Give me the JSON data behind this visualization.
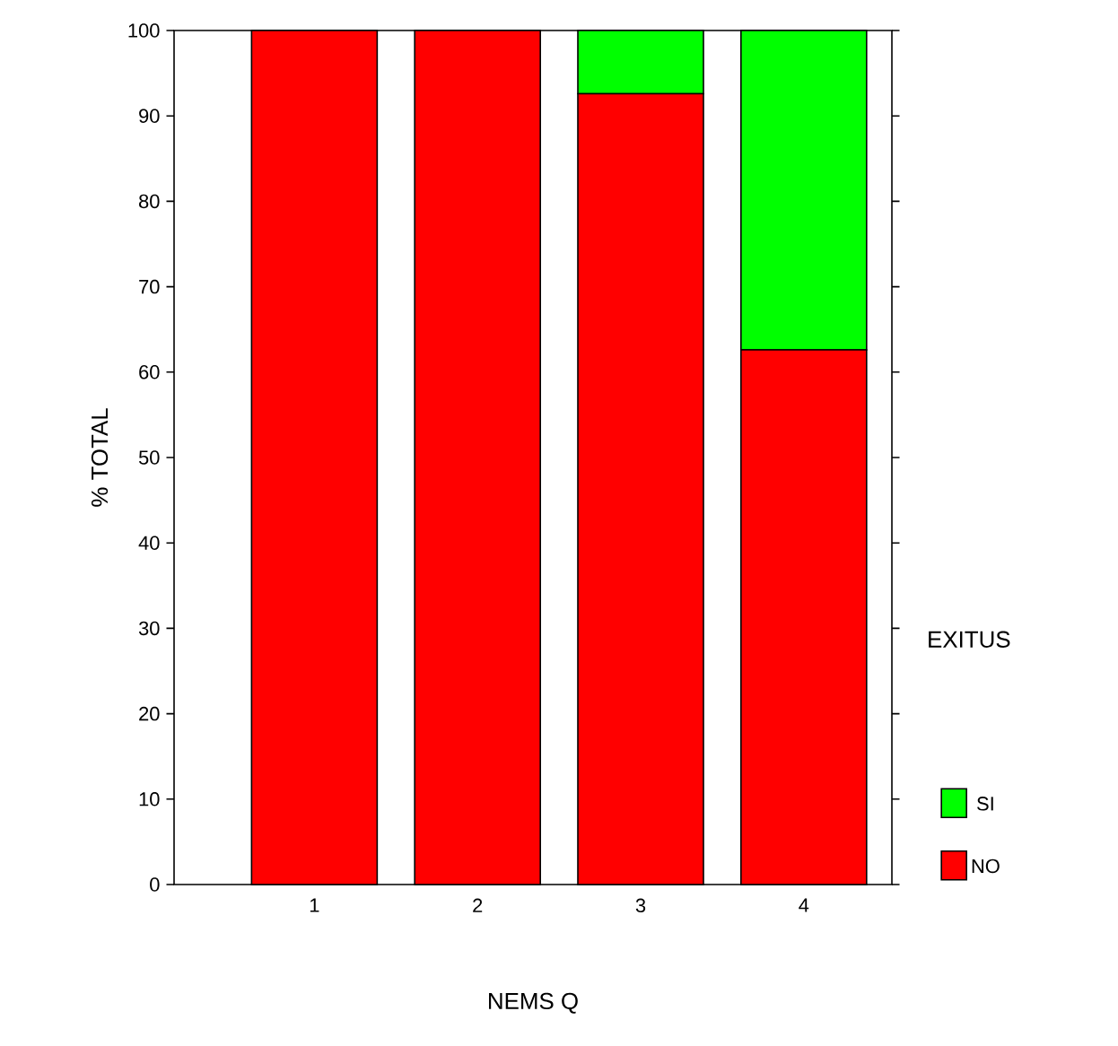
{
  "chart_data": {
    "type": "bar",
    "stacked": true,
    "xlabel": "NEMS  Q",
    "ylabel": "% TOTAL",
    "legend_title": "EXITUS",
    "legend": "right",
    "categories": [
      "1",
      "2",
      "3",
      "4"
    ],
    "series": [
      {
        "name": "NO",
        "color": "#ff0000",
        "values": [
          100,
          100,
          92.6,
          62.6
        ]
      },
      {
        "name": "SI",
        "color": "#00ff00",
        "values": [
          0,
          0,
          7.4,
          37.4
        ]
      }
    ],
    "ylim": [
      0,
      100
    ],
    "yticks": [
      0,
      10,
      20,
      30,
      40,
      50,
      60,
      70,
      80,
      90,
      100
    ]
  }
}
